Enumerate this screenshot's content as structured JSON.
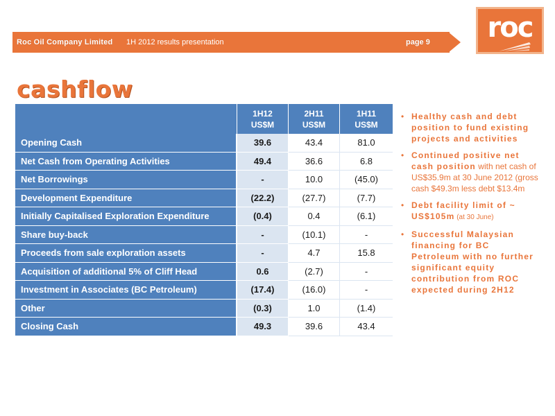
{
  "header": {
    "company": "Roc Oil Company Limited",
    "subtitle": "1H 2012 results presentation",
    "page": "page 9"
  },
  "logo": {
    "text": "roc"
  },
  "title": "cashflow",
  "table": {
    "columns": [
      {
        "line1": "1H12",
        "line2": "US$M"
      },
      {
        "line1": "2H11",
        "line2": "US$M"
      },
      {
        "line1": "1H11",
        "line2": "US$M"
      }
    ],
    "rows": [
      {
        "label": "Opening Cash",
        "values": [
          "39.6",
          "43.4",
          "81.0"
        ]
      },
      {
        "label": "Net Cash from Operating Activities",
        "values": [
          "49.4",
          "36.6",
          "6.8"
        ]
      },
      {
        "label": "Net Borrowings",
        "values": [
          "-",
          "10.0",
          "(45.0)"
        ]
      },
      {
        "label": "Development Expenditure",
        "values": [
          "(22.2)",
          "(27.7)",
          "(7.7)"
        ]
      },
      {
        "label": "Initially Capitalised Exploration Expenditure",
        "values": [
          "(0.4)",
          "0.4",
          "(6.1)"
        ]
      },
      {
        "label": "Share buy-back",
        "values": [
          "-",
          "(10.1)",
          "-"
        ]
      },
      {
        "label": "Proceeds from sale exploration assets",
        "values": [
          "-",
          "4.7",
          "15.8"
        ]
      },
      {
        "label": "Acquisition of additional 5% of Cliff Head",
        "values": [
          "0.6",
          "(2.7)",
          "-"
        ]
      },
      {
        "label": "Investment in Associates (BC Petroleum)",
        "values": [
          "(17.4)",
          "(16.0)",
          "-"
        ]
      },
      {
        "label": "Other",
        "values": [
          "(0.3)",
          "1.0",
          "(1.4)"
        ]
      },
      {
        "label": "Closing Cash",
        "values": [
          "49.3",
          "39.6",
          "43.4"
        ]
      }
    ]
  },
  "bullets": [
    {
      "bold": "Healthy cash and debt position to fund existing projects and activities",
      "normal": "",
      "small": ""
    },
    {
      "bold": "Continued positive net cash position",
      "normal": " with net cash of US$35.9m at 30 June 2012 (gross cash $49.3m less debt $13.4m",
      "small": ""
    },
    {
      "bold": "Debt facility limit of ~ US$105m",
      "normal": "",
      "small": " (at 30 June)"
    },
    {
      "bold": "Successful Malaysian financing for BC Petroleum with no further significant equity contribution from ROC expected during 2H12",
      "normal": "",
      "small": ""
    }
  ],
  "colors": {
    "accent": "#e9753a",
    "table_blue": "#4f81bd",
    "table_light": "#dbe5f1"
  }
}
